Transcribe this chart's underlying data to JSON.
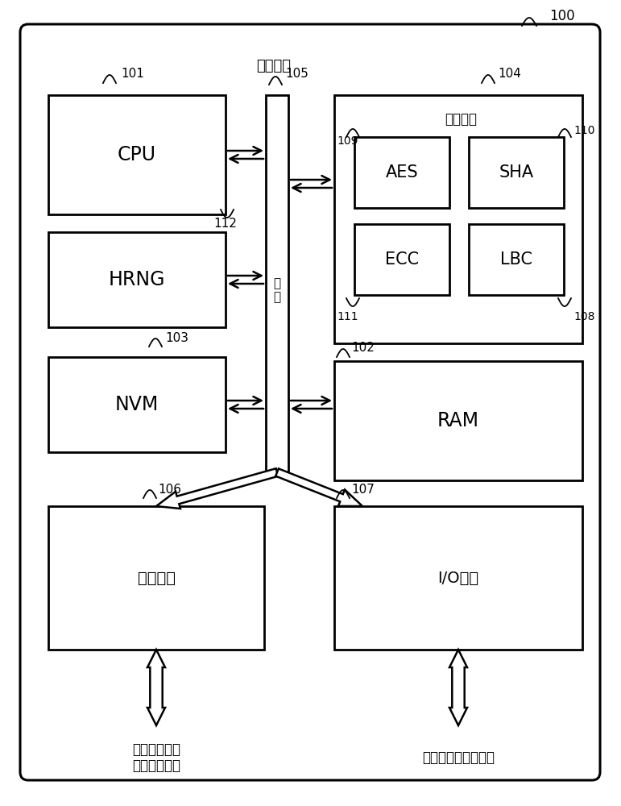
{
  "fig_width": 7.71,
  "fig_height": 10.0,
  "bg_color": "#ffffff",
  "label_100": "100",
  "label_处理设备": "处理设备",
  "label_101": "101",
  "label_104": "104",
  "label_105": "105",
  "label_102": "102",
  "label_103": "103",
  "label_106": "106",
  "label_107": "107",
  "label_108": "108",
  "label_109": "109",
  "label_110": "110",
  "label_111": "111",
  "label_112": "112",
  "label_CPU": "CPU",
  "label_HRNG": "HRNG",
  "label_NVM": "NVM",
  "label_RAM": "RAM",
  "label_密码模块": "密码模块",
  "label_AES": "AES",
  "label_SHA": "SHA",
  "label_ECC": "ECC",
  "label_LBC": "LBC",
  "label_总线": "总\n线",
  "label_模拟模块": "模拟模块",
  "label_IO": "I/O接口",
  "label_bottom_left": "通过电气接触\n电磁场来供电",
  "label_bottom_right": "与其他设备进行通信"
}
